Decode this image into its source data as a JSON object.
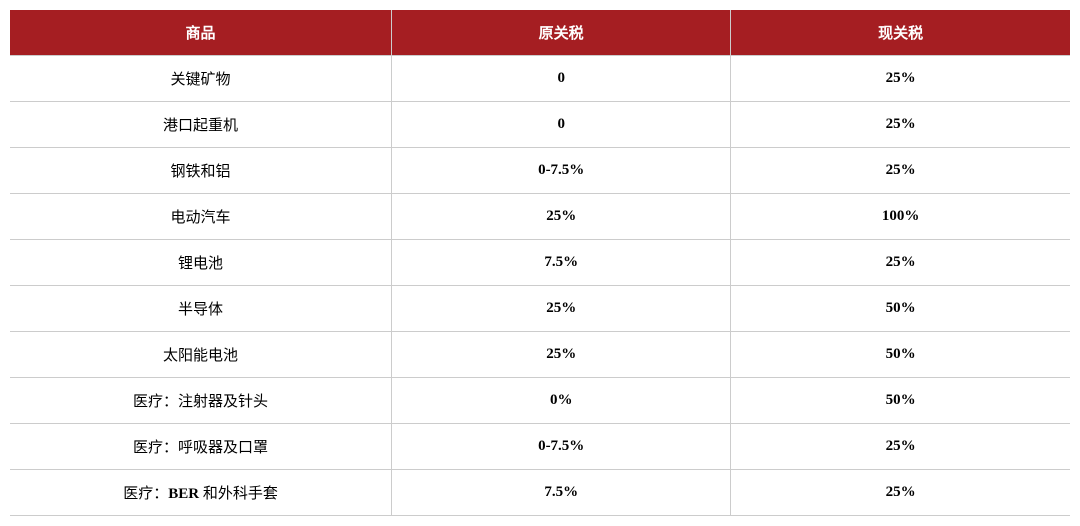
{
  "table": {
    "type": "table",
    "header_bg": "#a51e22",
    "header_fg": "#ffffff",
    "border_color": "#cccccc",
    "cell_fg": "#000000",
    "font_size_header": 15,
    "font_size_cell": 15,
    "value_font_weight": "bold",
    "columns": [
      {
        "label": "商品",
        "width_pct": 36,
        "align": "center"
      },
      {
        "label": "原关税",
        "width_pct": 32,
        "align": "center"
      },
      {
        "label": "现关税",
        "width_pct": 32,
        "align": "center"
      }
    ],
    "rows": [
      {
        "product": "关键矿物",
        "original_tariff": "0",
        "current_tariff": "25%"
      },
      {
        "product": "港口起重机",
        "original_tariff": "0",
        "current_tariff": "25%"
      },
      {
        "product": "钢铁和铝",
        "original_tariff": "0-7.5%",
        "current_tariff": "25%"
      },
      {
        "product": "电动汽车",
        "original_tariff": "25%",
        "current_tariff": "100%"
      },
      {
        "product": "锂电池",
        "original_tariff": "7.5%",
        "current_tariff": "25%"
      },
      {
        "product": "半导体",
        "original_tariff": "25%",
        "current_tariff": "50%"
      },
      {
        "product": "太阳能电池",
        "original_tariff": "25%",
        "current_tariff": "50%"
      },
      {
        "product": "医疗：注射器及针头",
        "original_tariff": "0%",
        "current_tariff": "50%"
      },
      {
        "product": "医疗：呼吸器及口罩",
        "original_tariff": "0-7.5%",
        "current_tariff": "25%"
      },
      {
        "product": "医疗：BER 和外科手套",
        "product_html": "医疗：<span class=\"latin\">BER</span> 和外科手套",
        "original_tariff": "7.5%",
        "current_tariff": "25%"
      }
    ]
  }
}
